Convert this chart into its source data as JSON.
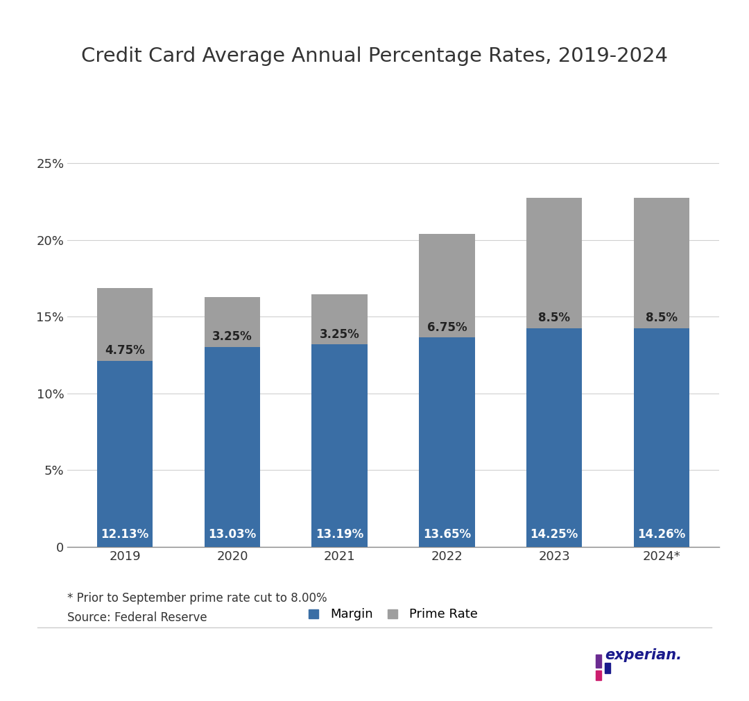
{
  "title": "Credit Card Average Annual Percentage Rates, 2019-2024",
  "categories": [
    "2019",
    "2020",
    "2021",
    "2022",
    "2023",
    "2024*"
  ],
  "margin_values": [
    12.13,
    13.03,
    13.19,
    13.65,
    14.25,
    14.26
  ],
  "prime_values": [
    4.75,
    3.25,
    3.25,
    6.75,
    8.5,
    8.5
  ],
  "margin_color": "#3a6ea5",
  "prime_color": "#9e9e9e",
  "margin_label": "Margin",
  "prime_label": "Prime Rate",
  "margin_labels": [
    "12.13%",
    "13.03%",
    "13.19%",
    "13.65%",
    "14.25%",
    "14.26%"
  ],
  "prime_labels": [
    "4.75%",
    "3.25%",
    "3.25%",
    "6.75%",
    "8.5%",
    "8.5%"
  ],
  "yticks": [
    0,
    5,
    10,
    15,
    20,
    25
  ],
  "ytick_labels": [
    "0",
    "5%",
    "10%",
    "15%",
    "20%",
    "25%"
  ],
  "ylim": [
    0,
    26.5
  ],
  "footnote1": "* Prior to September prime rate cut to 8.00%",
  "footnote2": "Source: Federal Reserve",
  "background_color": "#ffffff",
  "grid_color": "#d0d0d0",
  "text_color": "#333333",
  "title_fontsize": 21,
  "label_fontsize": 12,
  "tick_fontsize": 13,
  "legend_fontsize": 13,
  "footnote_fontsize": 12,
  "bar_width": 0.52
}
